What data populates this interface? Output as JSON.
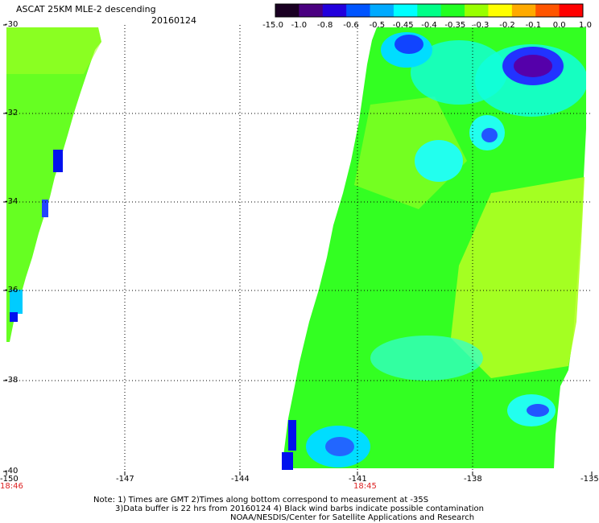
{
  "header": {
    "title": "ASCAT 25KM MLE-2 descending",
    "date": "20160124"
  },
  "colorbar": {
    "labels": [
      "-15.0",
      "-1.0",
      "-0.8",
      "-0.6",
      "-0.5",
      "-0.45",
      "-0.4",
      "-0.35",
      "-0.3",
      "-0.2",
      "-0.1",
      "0.0",
      "1.0"
    ],
    "colors": [
      "#1a0022",
      "#4a0080",
      "#2200dd",
      "#0055ff",
      "#00aaff",
      "#00ffff",
      "#00ff88",
      "#22ff22",
      "#99ff00",
      "#ffff00",
      "#ffaa00",
      "#ff5500",
      "#ff0000"
    ]
  },
  "axes": {
    "lat_labels": [
      "-30",
      "-32",
      "-34",
      "-36",
      "-38",
      "-40"
    ],
    "lon_labels": [
      "-150",
      "-147",
      "-144",
      "-141",
      "-138",
      "-135"
    ],
    "time_labels": [
      {
        "text": "18:46",
        "lon": "-150"
      },
      {
        "text": "18:45",
        "lon": "-141"
      }
    ]
  },
  "footer": {
    "line1": "Note: 1) Times are GMT 2)Times along bottom correspond to measurement at -35S",
    "line2": "3)Data buffer is 22 hrs from 20160124 4) Black wind barbs indicate possible contamination",
    "line3": "NOAA/NESDIS/Center for Satellite Applications and Research"
  }
}
